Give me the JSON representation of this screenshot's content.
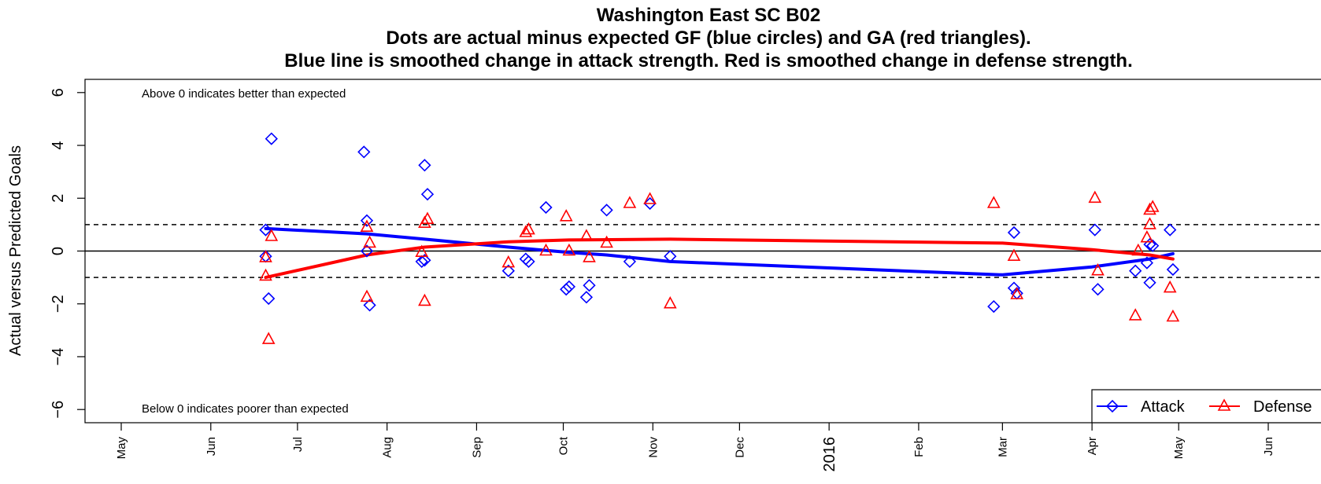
{
  "chart_data": {
    "type": "scatter",
    "title_lines": [
      "Washington East SC B02",
      "Dots are actual minus expected GF (blue circles) and GA (red triangles).",
      "Blue line is smoothed change in attack strength. Red is smoothed change in defense strength."
    ],
    "ylabel": "Actual versus Predicted Goals",
    "ylim": [
      -6.5,
      6.5
    ],
    "y_ticks": [
      6,
      4,
      2,
      0,
      -2,
      -4,
      -6
    ],
    "y_tick_labels": [
      "6",
      "4",
      "2",
      "0",
      "−2",
      "−4",
      "−6"
    ],
    "x_tick_labels": [
      "May",
      "Jun",
      "Jul",
      "Aug",
      "Sep",
      "Oct",
      "Nov",
      "Dec",
      "2016",
      "Feb",
      "Mar",
      "Apr",
      "May",
      "Jun"
    ],
    "reference_lines": [
      {
        "y": 1,
        "style": "dashed"
      },
      {
        "y": 0,
        "style": "solid"
      },
      {
        "y": -1,
        "style": "dashed"
      }
    ],
    "annotations": {
      "top": "Above 0 indicates better than expected",
      "bottom": "Below 0 indicates poorer than expected"
    },
    "legend": {
      "position": "bottom-right",
      "entries": [
        {
          "label": "Attack",
          "color": "#0000ff",
          "marker": "diamond"
        },
        {
          "label": "Defense",
          "color": "#ff0000",
          "marker": "triangle"
        }
      ]
    },
    "series": [
      {
        "name": "Attack",
        "kind": "points",
        "color": "#0000ff",
        "marker": "diamond",
        "points": [
          {
            "x": "2015-06-20",
            "y": 0.8
          },
          {
            "x": "2015-06-20",
            "y": -0.2
          },
          {
            "x": "2015-06-21",
            "y": -1.8
          },
          {
            "x": "2015-06-22",
            "y": 4.25
          },
          {
            "x": "2015-07-24",
            "y": 3.75
          },
          {
            "x": "2015-07-25",
            "y": 1.15
          },
          {
            "x": "2015-07-25",
            "y": 0.0
          },
          {
            "x": "2015-07-26",
            "y": -2.05
          },
          {
            "x": "2015-08-14",
            "y": 3.25
          },
          {
            "x": "2015-08-15",
            "y": 2.15
          },
          {
            "x": "2015-08-13",
            "y": -0.4
          },
          {
            "x": "2015-08-14",
            "y": -0.35
          },
          {
            "x": "2015-09-12",
            "y": -0.75
          },
          {
            "x": "2015-09-18",
            "y": -0.3
          },
          {
            "x": "2015-09-19",
            "y": -0.4
          },
          {
            "x": "2015-09-25",
            "y": 1.65
          },
          {
            "x": "2015-10-02",
            "y": -1.45
          },
          {
            "x": "2015-10-03",
            "y": -1.35
          },
          {
            "x": "2015-10-09",
            "y": -1.75
          },
          {
            "x": "2015-10-10",
            "y": -1.3
          },
          {
            "x": "2015-10-16",
            "y": 1.55
          },
          {
            "x": "2015-10-24",
            "y": -0.4
          },
          {
            "x": "2015-10-31",
            "y": 1.8
          },
          {
            "x": "2015-11-07",
            "y": -0.2
          },
          {
            "x": "2016-02-27",
            "y": -2.1
          },
          {
            "x": "2016-03-05",
            "y": 0.7
          },
          {
            "x": "2016-03-05",
            "y": -1.4
          },
          {
            "x": "2016-03-06",
            "y": -1.6
          },
          {
            "x": "2016-04-02",
            "y": 0.8
          },
          {
            "x": "2016-04-03",
            "y": -1.45
          },
          {
            "x": "2016-04-16",
            "y": -0.75
          },
          {
            "x": "2016-04-20",
            "y": -0.45
          },
          {
            "x": "2016-04-21",
            "y": 0.25
          },
          {
            "x": "2016-04-22",
            "y": 0.2
          },
          {
            "x": "2016-04-21",
            "y": -1.2
          },
          {
            "x": "2016-04-28",
            "y": 0.8
          },
          {
            "x": "2016-04-29",
            "y": -0.7
          }
        ]
      },
      {
        "name": "Defense",
        "kind": "points",
        "color": "#ff0000",
        "marker": "triangle",
        "points": [
          {
            "x": "2015-06-20",
            "y": -0.25
          },
          {
            "x": "2015-06-20",
            "y": -0.95
          },
          {
            "x": "2015-06-21",
            "y": -3.35
          },
          {
            "x": "2015-06-22",
            "y": 0.55
          },
          {
            "x": "2015-07-25",
            "y": 0.9
          },
          {
            "x": "2015-07-25",
            "y": -1.75
          },
          {
            "x": "2015-07-26",
            "y": 0.3
          },
          {
            "x": "2015-08-13",
            "y": -0.05
          },
          {
            "x": "2015-08-14",
            "y": 1.05
          },
          {
            "x": "2015-08-15",
            "y": 1.2
          },
          {
            "x": "2015-08-14",
            "y": -1.9
          },
          {
            "x": "2015-09-12",
            "y": -0.45
          },
          {
            "x": "2015-09-18",
            "y": 0.7
          },
          {
            "x": "2015-09-19",
            "y": 0.8
          },
          {
            "x": "2015-09-25",
            "y": 0.0
          },
          {
            "x": "2015-10-02",
            "y": 1.3
          },
          {
            "x": "2015-10-03",
            "y": 0.0
          },
          {
            "x": "2015-10-09",
            "y": 0.55
          },
          {
            "x": "2015-10-10",
            "y": -0.25
          },
          {
            "x": "2015-10-16",
            "y": 0.3
          },
          {
            "x": "2015-10-24",
            "y": 1.8
          },
          {
            "x": "2015-10-31",
            "y": 1.95
          },
          {
            "x": "2015-11-07",
            "y": -2.0
          },
          {
            "x": "2016-02-27",
            "y": 1.8
          },
          {
            "x": "2016-03-05",
            "y": -0.2
          },
          {
            "x": "2016-03-06",
            "y": -1.65
          },
          {
            "x": "2016-04-02",
            "y": 2.0
          },
          {
            "x": "2016-04-03",
            "y": -0.75
          },
          {
            "x": "2016-04-16",
            "y": -2.45
          },
          {
            "x": "2016-04-17",
            "y": 0.0
          },
          {
            "x": "2016-04-20",
            "y": 0.5
          },
          {
            "x": "2016-04-21",
            "y": 1.0
          },
          {
            "x": "2016-04-21",
            "y": 1.55
          },
          {
            "x": "2016-04-22",
            "y": 1.65
          },
          {
            "x": "2016-04-28",
            "y": -1.4
          },
          {
            "x": "2016-04-29",
            "y": -2.5
          }
        ]
      },
      {
        "name": "Attack",
        "kind": "line",
        "color": "#0000ff",
        "points": [
          {
            "x": "2015-06-20",
            "y": 0.85
          },
          {
            "x": "2015-07-25",
            "y": 0.65
          },
          {
            "x": "2015-08-14",
            "y": 0.45
          },
          {
            "x": "2015-09-12",
            "y": 0.15
          },
          {
            "x": "2015-10-03",
            "y": -0.05
          },
          {
            "x": "2015-10-16",
            "y": -0.15
          },
          {
            "x": "2015-11-07",
            "y": -0.4
          },
          {
            "x": "2016-03-01",
            "y": -0.9
          },
          {
            "x": "2016-04-01",
            "y": -0.6
          },
          {
            "x": "2016-04-21",
            "y": -0.3
          },
          {
            "x": "2016-04-29",
            "y": -0.1
          }
        ]
      },
      {
        "name": "Defense",
        "kind": "line",
        "color": "#ff0000",
        "points": [
          {
            "x": "2015-06-20",
            "y": -1.0
          },
          {
            "x": "2015-07-25",
            "y": -0.15
          },
          {
            "x": "2015-08-14",
            "y": 0.15
          },
          {
            "x": "2015-09-12",
            "y": 0.35
          },
          {
            "x": "2015-10-03",
            "y": 0.42
          },
          {
            "x": "2015-11-07",
            "y": 0.45
          },
          {
            "x": "2016-03-01",
            "y": 0.3
          },
          {
            "x": "2016-04-01",
            "y": 0.05
          },
          {
            "x": "2016-04-21",
            "y": -0.15
          },
          {
            "x": "2016-04-29",
            "y": -0.3
          }
        ]
      }
    ]
  }
}
